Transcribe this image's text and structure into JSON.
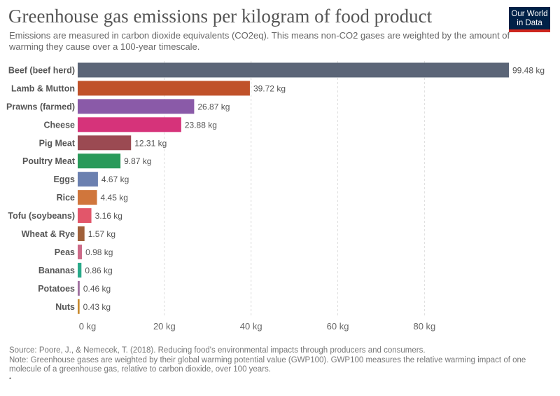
{
  "header": {
    "title": "Greenhouse gas emissions per kilogram of food product",
    "subtitle": "Emissions are measured in carbon dioxide equivalents (CO2eq). This means non-CO2 gases are weighted by the amount of warming they cause over a 100-year timescale.",
    "logo_line1": "Our World",
    "logo_line2": "in Data",
    "logo_bg_color": "#002147",
    "logo_accent_color": "#ce261e"
  },
  "chart_data": {
    "type": "bar",
    "orientation": "horizontal",
    "title": "Greenhouse gas emissions per kilogram of food product",
    "unit": "kg",
    "xlim": [
      0,
      99.48
    ],
    "x_ticks": [
      0,
      20,
      40,
      60,
      80
    ],
    "x_tick_labels": [
      "0 kg",
      "20 kg",
      "40 kg",
      "60 kg",
      "80 kg"
    ],
    "grid": "vertical dashed",
    "categories": [
      "Beef (beef herd)",
      "Lamb & Mutton",
      "Prawns (farmed)",
      "Cheese",
      "Pig Meat",
      "Poultry Meat",
      "Eggs",
      "Rice",
      "Tofu (soybeans)",
      "Wheat & Rye",
      "Peas",
      "Bananas",
      "Potatoes",
      "Nuts"
    ],
    "values": [
      99.48,
      39.72,
      26.87,
      23.88,
      12.31,
      9.87,
      4.67,
      4.45,
      3.16,
      1.57,
      0.98,
      0.86,
      0.46,
      0.43
    ],
    "value_labels": [
      "99.48 kg",
      "39.72 kg",
      "26.87 kg",
      "23.88 kg",
      "12.31 kg",
      "9.87 kg",
      "4.67 kg",
      "4.45 kg",
      "3.16 kg",
      "1.57 kg",
      "0.98 kg",
      "0.86 kg",
      "0.46 kg",
      "0.43 kg"
    ],
    "colors": [
      "#5b6577",
      "#c0522a",
      "#8a5aa8",
      "#d6337a",
      "#9b4a52",
      "#2a9a5a",
      "#6b80b0",
      "#d0763c",
      "#e2566a",
      "#a0603a",
      "#cc6a88",
      "#2aaa8a",
      "#a070a0",
      "#c88a30"
    ]
  },
  "footer": {
    "source": "Source: Poore, J., & Nemecek, T. (2018). Reducing food's environmental impacts through producers and consumers.",
    "note": "Note: Greenhouse gases are weighted by their global warming potential value (GWP100). GWP100 measures the relative warming impact of one molecule of a greenhouse gas, relative to carbon dioxide, over 100 years.",
    "mark": "•"
  }
}
